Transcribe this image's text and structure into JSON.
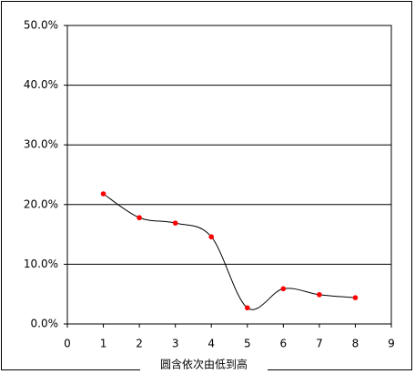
{
  "chart_data": {
    "type": "line",
    "x_label": "圆含依次由低到高",
    "x": [
      1,
      2,
      3,
      4,
      5,
      6,
      7,
      8
    ],
    "series": [
      {
        "color": "#ff0000",
        "values": [
          21.8,
          17.8,
          16.9,
          14.6,
          2.7,
          5.9,
          4.9,
          4.4
        ]
      }
    ],
    "xlim": [
      0,
      9
    ],
    "xticks": [
      0,
      1,
      2,
      3,
      4,
      5,
      6,
      7,
      8,
      9
    ],
    "ylim": [
      0,
      50
    ],
    "yticks": [
      {
        "value": 0,
        "label": "0.0%"
      },
      {
        "value": 10,
        "label": "10.0%"
      },
      {
        "value": 20,
        "label": "20.0%"
      },
      {
        "value": 30,
        "label": "30.0%"
      },
      {
        "value": 40,
        "label": "40.0%"
      },
      {
        "value": 50,
        "label": "50.0%"
      }
    ],
    "grid": true,
    "smooth": true
  }
}
